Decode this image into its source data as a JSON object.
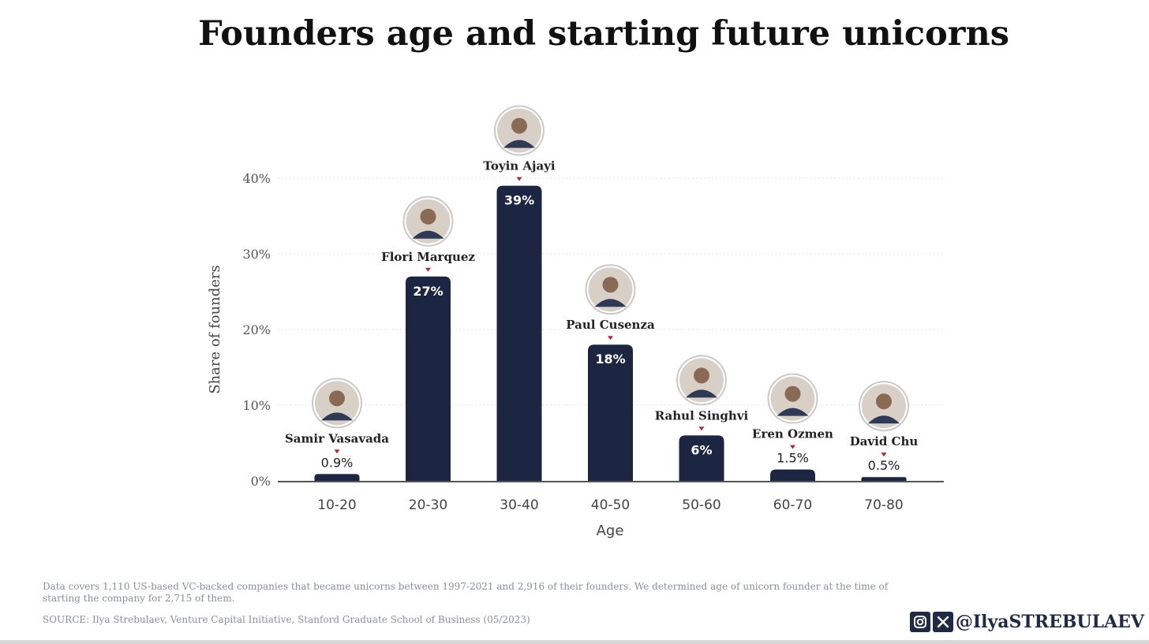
{
  "title": "Founders age and starting future unicorns",
  "chart_data": {
    "type": "bar",
    "title": "Founders age and starting future unicorns",
    "xlabel": "Age",
    "ylabel": "Share of founders",
    "categories": [
      "10-20",
      "20-30",
      "30-40",
      "40-50",
      "50-60",
      "60-70",
      "70-80"
    ],
    "values": [
      0.9,
      27,
      39,
      18,
      6,
      1.5,
      0.5
    ],
    "value_labels": [
      "0.9%",
      "27%",
      "39%",
      "18%",
      "6%",
      "1.5%",
      "0.5%"
    ],
    "annotations": [
      "Samir Vasavada",
      "Flori Marquez",
      "Toyin Ajayi",
      "Paul Cusenza",
      "Rahul Singhvi",
      "Eren Ozmen",
      "David Chu"
    ],
    "yticks": [
      0,
      10,
      20,
      30,
      40
    ],
    "ytick_labels": [
      "0%",
      "10%",
      "20%",
      "30%",
      "40%"
    ],
    "ylim": [
      0,
      40
    ],
    "grid": true,
    "legend": "none",
    "colors": {
      "bar": "#1c2541",
      "label_inside": "#ffffff",
      "label_outside": "#222222",
      "marker": "#b3263a",
      "grid": "#e6e6e6"
    }
  },
  "footnote": "Data covers 1,110 US-based VC-backed companies that became unicorns between 1997-2021 and 2,916 of their founders. We determined age of unicorn founder at the time of starting the company for 2,715 of them.",
  "source": "SOURCE: Ilya Strebulaev, Venture Capital Initiative, Stanford Graduate School of Business (05/2023)",
  "handle": {
    "text": "@IlyaSTREBULAEV",
    "icons": [
      "instagram-icon",
      "x-icon"
    ]
  }
}
